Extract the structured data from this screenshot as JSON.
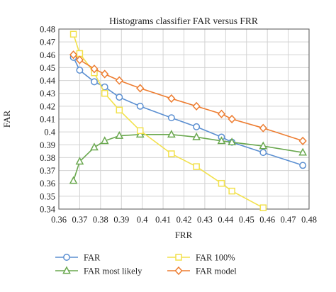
{
  "chart_data": {
    "type": "line",
    "title": "Histograms classifier FAR versus FRR",
    "xlabel": "FRR",
    "ylabel": "FAR",
    "xlim": [
      0.36,
      0.48
    ],
    "ylim": [
      0.34,
      0.48
    ],
    "xticks": [
      "0.36",
      "0.37",
      "0.38",
      "0.39",
      "0.4",
      "0.41",
      "0.42",
      "0.43",
      "0.44",
      "0.45",
      "0.46",
      "0.47",
      "0.48"
    ],
    "yticks": [
      "0.34",
      "0.35",
      "0.36",
      "0.37",
      "0.38",
      "0.39",
      "0.4",
      "0.41",
      "0.42",
      "0.43",
      "0.44",
      "0.45",
      "0.46",
      "0.47",
      "0.48"
    ],
    "grid": true,
    "legend_position": "bottom",
    "series": [
      {
        "name": "FAR",
        "color": "#5b8fd1",
        "marker": "circle",
        "x": [
          0.367,
          0.37,
          0.377,
          0.382,
          0.389,
          0.399,
          0.414,
          0.426,
          0.438,
          0.443,
          0.458,
          0.477
        ],
        "y": [
          0.458,
          0.448,
          0.439,
          0.435,
          0.427,
          0.42,
          0.411,
          0.404,
          0.396,
          0.392,
          0.384,
          0.374
        ]
      },
      {
        "name": "FAR most likely",
        "color": "#6aa84f",
        "marker": "triangle",
        "x": [
          0.367,
          0.37,
          0.377,
          0.382,
          0.389,
          0.399,
          0.414,
          0.426,
          0.438,
          0.443,
          0.458,
          0.477
        ],
        "y": [
          0.362,
          0.377,
          0.388,
          0.393,
          0.397,
          0.398,
          0.398,
          0.396,
          0.393,
          0.392,
          0.389,
          0.384
        ]
      },
      {
        "name": "FAR 100%",
        "color": "#f2e14c",
        "marker": "square",
        "x": [
          0.367,
          0.37,
          0.377,
          0.382,
          0.389,
          0.399,
          0.414,
          0.426,
          0.438,
          0.443,
          0.458
        ],
        "y": [
          0.476,
          0.461,
          0.446,
          0.43,
          0.417,
          0.401,
          0.383,
          0.373,
          0.36,
          0.354,
          0.341
        ]
      },
      {
        "name": "FAR model",
        "color": "#ed7d31",
        "marker": "diamond",
        "x": [
          0.367,
          0.37,
          0.377,
          0.382,
          0.389,
          0.399,
          0.414,
          0.426,
          0.438,
          0.443,
          0.458,
          0.477
        ],
        "y": [
          0.46,
          0.456,
          0.449,
          0.445,
          0.44,
          0.434,
          0.426,
          0.42,
          0.414,
          0.41,
          0.403,
          0.393
        ]
      }
    ]
  }
}
